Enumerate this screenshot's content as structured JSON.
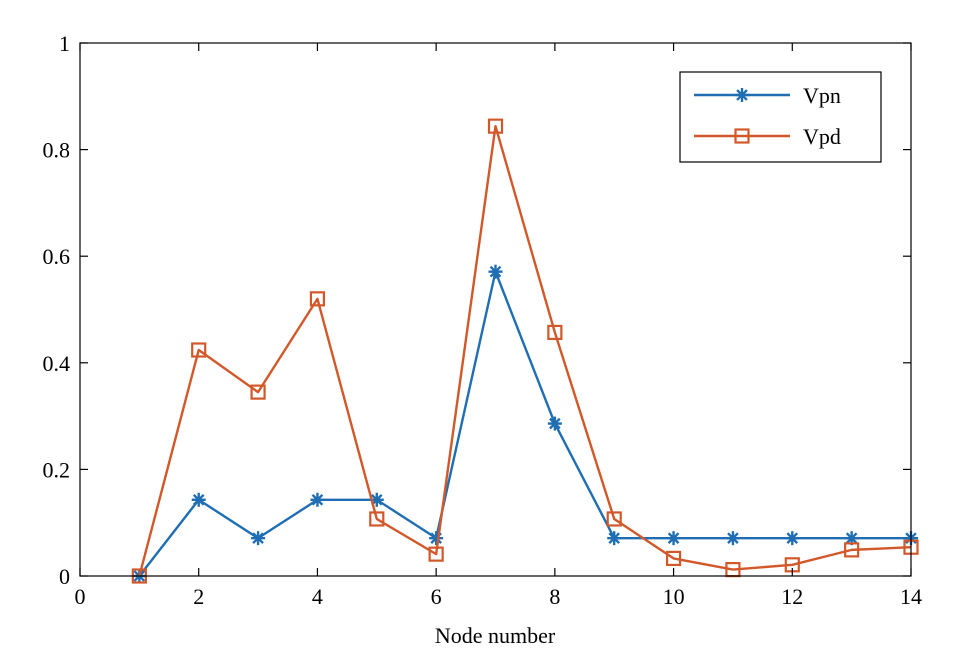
{
  "chart_data": {
    "type": "line",
    "title": "",
    "xlabel": "Node number",
    "ylabel": "",
    "xlim": [
      0,
      14
    ],
    "ylim": [
      0,
      1
    ],
    "xticks": [
      0,
      2,
      4,
      6,
      8,
      10,
      12,
      14
    ],
    "yticks": [
      0,
      0.2,
      0.4,
      0.6,
      0.8,
      1
    ],
    "xtick_labels": [
      "0",
      "2",
      "4",
      "6",
      "8",
      "10",
      "12",
      "14"
    ],
    "ytick_labels": [
      "0",
      "0.2",
      "0.4",
      "0.6",
      "0.8",
      "1"
    ],
    "grid": false,
    "legend_position": "top-right",
    "x": [
      1,
      2,
      3,
      4,
      5,
      6,
      7,
      8,
      9,
      10,
      11,
      12,
      13,
      14
    ],
    "series": [
      {
        "name": "Vpn",
        "color": "#1f6eb4",
        "marker": "asterisk",
        "values": [
          0,
          0.143,
          0.071,
          0.143,
          0.143,
          0.071,
          0.571,
          0.286,
          0.071,
          0.071,
          0.071,
          0.071,
          0.071,
          0.071
        ]
      },
      {
        "name": "Vpd",
        "color": "#d2582a",
        "marker": "square",
        "values": [
          0,
          0.424,
          0.345,
          0.52,
          0.107,
          0.041,
          0.844,
          0.457,
          0.107,
          0.033,
          0.012,
          0.021,
          0.049,
          0.054
        ]
      }
    ]
  }
}
